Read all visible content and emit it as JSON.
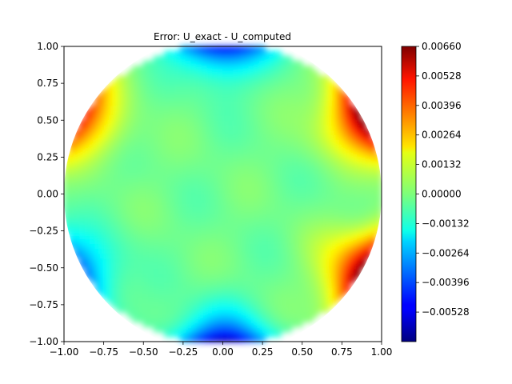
{
  "chart_data": {
    "type": "heatmap",
    "title": "Error: U_exact - U_computed",
    "xlabel": "",
    "ylabel": "",
    "xlim": [
      -1.0,
      1.0
    ],
    "ylim": [
      -1.0,
      1.0
    ],
    "domain_shape": "unit disk",
    "grid": false,
    "colormap": "jet",
    "x_ticks": [
      "−1.00",
      "−0.75",
      "−0.50",
      "−0.25",
      "0.00",
      "0.25",
      "0.50",
      "0.75",
      "1.00"
    ],
    "y_ticks": [
      "−1.00",
      "−0.75",
      "−0.50",
      "−0.25",
      "0.00",
      "0.25",
      "0.50",
      "0.75",
      "1.00"
    ],
    "colorbar": {
      "placement": "right",
      "range": [
        -0.0066,
        0.0066
      ],
      "tick_values": [
        0.0066,
        0.00528,
        0.00396,
        0.00264,
        0.00132,
        0.0,
        -0.00132,
        -0.00264,
        -0.00396,
        -0.00528
      ],
      "tick_labels": [
        "0.00660",
        "0.00528",
        "0.00396",
        "0.00264",
        "0.00132",
        "0.00000",
        "−0.00132",
        "−0.00264",
        "−0.00396",
        "−0.00528"
      ]
    },
    "field_features": [
      {
        "polar_angle_deg": 30,
        "value": 0.0066
      },
      {
        "polar_angle_deg": 90,
        "value": -0.0053
      },
      {
        "polar_angle_deg": 150,
        "value": 0.0045
      },
      {
        "polar_angle_deg": 210,
        "value": -0.0035
      },
      {
        "polar_angle_deg": 270,
        "value": -0.006
      },
      {
        "polar_angle_deg": 330,
        "value": 0.0066
      }
    ],
    "interior_value": -0.0002
  }
}
